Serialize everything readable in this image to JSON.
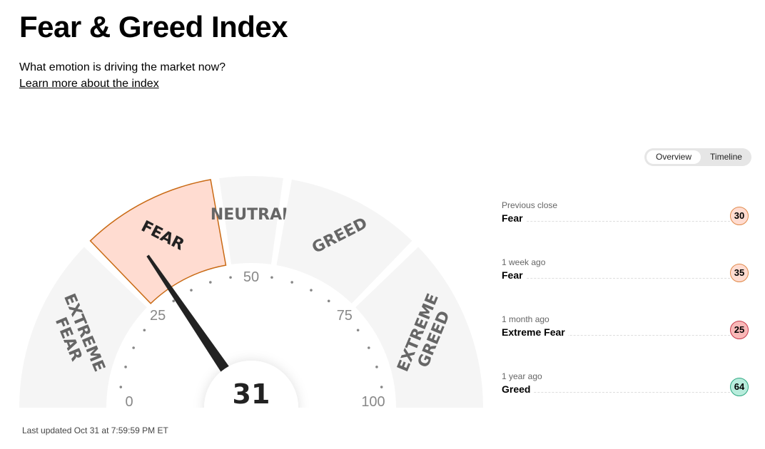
{
  "header": {
    "title": "Fear & Greed Index",
    "subtitle": "What emotion is driving the market now?",
    "learn_link": "Learn more about the index"
  },
  "toggle": {
    "overview": "Overview",
    "timeline": "Timeline",
    "selected": "Overview"
  },
  "gauge": {
    "value": 31,
    "value_label": "31",
    "current_rating": "Fear",
    "segments": [
      {
        "label": [
          "EXTREME",
          "FEAR"
        ],
        "from": 0,
        "to": 25
      },
      {
        "label": [
          "FEAR"
        ],
        "from": 25,
        "to": 45
      },
      {
        "label": [
          "NEUTRAL"
        ],
        "from": 45,
        "to": 55
      },
      {
        "label": [
          "GREED"
        ],
        "from": 55,
        "to": 75
      },
      {
        "label": [
          "EXTREME",
          "GREED"
        ],
        "from": 75,
        "to": 100
      }
    ],
    "ticks": [
      "0",
      "25",
      "50",
      "75",
      "100"
    ],
    "colors": {
      "segment": "#f5f5f5",
      "active_fill": "#ffdcd1",
      "active_stroke": "#c96a14",
      "needle": "#222222"
    }
  },
  "last_updated": "Last updated Oct 31 at 7:59:59 PM ET",
  "history": [
    {
      "label": "Previous close",
      "rating": "Fear",
      "value": "30",
      "bg": "#ffdcd1",
      "border": "#e08a4a"
    },
    {
      "label": "1 week ago",
      "rating": "Fear",
      "value": "35",
      "bg": "#ffdcd1",
      "border": "#e08a4a"
    },
    {
      "label": "1 month ago",
      "rating": "Extreme Fear",
      "value": "25",
      "bg": "#f9b8b8",
      "border": "#c8384a"
    },
    {
      "label": "1 year ago",
      "rating": "Greed",
      "value": "64",
      "bg": "#b8ecdc",
      "border": "#2fa882"
    }
  ]
}
